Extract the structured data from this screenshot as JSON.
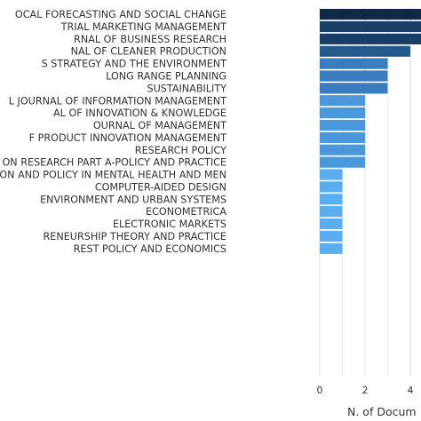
{
  "chart_data": {
    "type": "bar",
    "orientation": "horizontal",
    "title": "",
    "xlabel": "N. of Docum",
    "ylabel": "",
    "grid": true,
    "categories": [
      "OCAL FORECASTING AND SOCIAL CHANGE",
      "TRIAL MARKETING MANAGEMENT",
      "RNAL OF BUSINESS RESEARCH",
      "NAL OF CLEANER PRODUCTION",
      "S STRATEGY AND THE ENVIRONMENT",
      "LONG RANGE PLANNING",
      "SUSTAINABILITY",
      "L JOURNAL OF INFORMATION MANAGEMENT",
      "AL OF INNOVATION & KNOWLEDGE",
      "OURNAL OF MANAGEMENT",
      "F PRODUCT INNOVATION MANAGEMENT",
      "RESEARCH POLICY",
      "ON RESEARCH PART A-POLICY AND PRACTICE",
      "ON AND POLICY IN MENTAL HEALTH AND MEN",
      "COMPUTER-AIDED DESIGN",
      " ENVIRONMENT AND URBAN SYSTEMS",
      "ECONOMETRICA",
      "ELECTRONIC MARKETS",
      "RENEURSHIP THEORY AND PRACTICE",
      "REST POLICY AND ECONOMICS"
    ],
    "values": [
      6,
      5,
      5,
      4,
      3,
      3,
      3,
      2,
      2,
      2,
      2,
      2,
      2,
      1,
      1,
      1,
      1,
      1,
      1,
      1
    ],
    "colors": [
      "#0f2a47",
      "#1a3f66",
      "#1a3f66",
      "#255a8c",
      "#3b7bbf",
      "#3b7bbf",
      "#3b7bbf",
      "#4a97db",
      "#4a97db",
      "#4a97db",
      "#4a97db",
      "#4a97db",
      "#4a97db",
      "#5aaeef",
      "#5aaeef",
      "#5aaeef",
      "#5aaeef",
      "#5aaeef",
      "#5aaeef",
      "#5aaeef"
    ],
    "xticks": [
      0,
      2,
      4
    ],
    "xlim": [
      0,
      6
    ]
  }
}
